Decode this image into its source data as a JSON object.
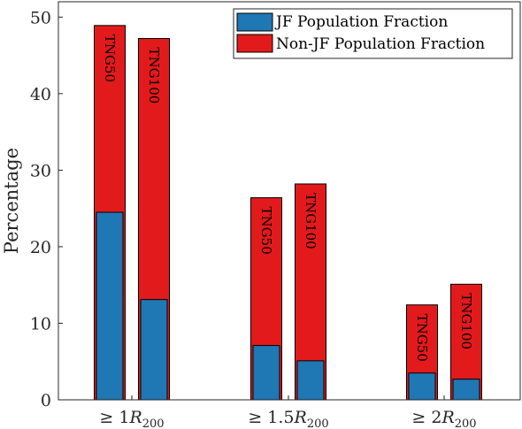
{
  "chart_data": {
    "type": "bar",
    "stacked_overlay": true,
    "categories": [
      {
        "base": "≥ 1",
        "var": "R",
        "sub": "200"
      },
      {
        "base": "≥ 1.5",
        "var": "R",
        "sub": "200"
      },
      {
        "base": "≥ 2",
        "var": "R",
        "sub": "200"
      }
    ],
    "simulations": [
      "TNG50",
      "TNG100"
    ],
    "series": [
      {
        "name": "JF Population Fraction",
        "color": "#1f77b4",
        "values": {
          "TNG50": [
            24.5,
            7.1,
            3.5
          ],
          "TNG100": [
            13.1,
            5.1,
            2.7
          ]
        }
      },
      {
        "name": "Non-JF Population Fraction",
        "color": "#e31a1c",
        "values": {
          "TNG50": [
            24.4,
            19.3,
            8.9
          ],
          "TNG100": [
            34.1,
            23.1,
            12.4
          ]
        }
      }
    ],
    "totals": {
      "TNG50": [
        48.9,
        26.4,
        12.4
      ],
      "TNG100": [
        47.2,
        28.2,
        15.1
      ]
    },
    "ylabel": "Percentage",
    "xlabel": "",
    "ylim": [
      0,
      52
    ],
    "yticks": [
      0,
      10,
      20,
      30,
      40,
      50
    ],
    "legend_position": "top-right",
    "grid": false
  }
}
